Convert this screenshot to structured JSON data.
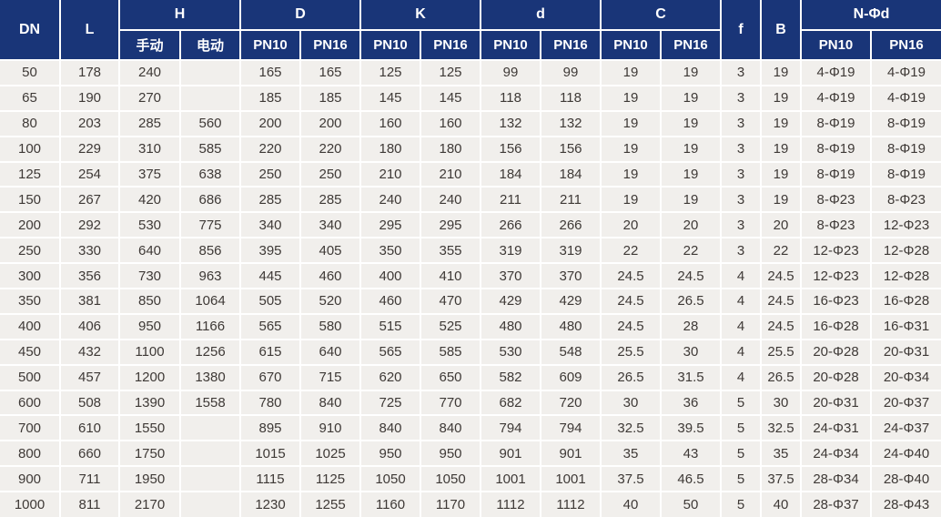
{
  "colors": {
    "header_bg": "#193578",
    "header_text": "#ffffff",
    "row_bg": "#f1efec",
    "grid": "#ffffff",
    "body_text": "#3e3936"
  },
  "table": {
    "header_groups": [
      {
        "label": "DN",
        "sub": []
      },
      {
        "label": "L",
        "sub": []
      },
      {
        "label": "H",
        "sub": [
          "手动",
          "电动"
        ]
      },
      {
        "label": "D",
        "sub": [
          "PN10",
          "PN16"
        ]
      },
      {
        "label": "K",
        "sub": [
          "PN10",
          "PN16"
        ]
      },
      {
        "label": "d",
        "sub": [
          "PN10",
          "PN16"
        ]
      },
      {
        "label": "C",
        "sub": [
          "PN10",
          "PN16"
        ]
      },
      {
        "label": "f",
        "sub": []
      },
      {
        "label": "B",
        "sub": []
      },
      {
        "label": "N-Φd",
        "sub": [
          "PN10",
          "PN16"
        ]
      }
    ],
    "rows": [
      [
        "50",
        "178",
        "240",
        "",
        "165",
        "165",
        "125",
        "125",
        "99",
        "99",
        "19",
        "19",
        "3",
        "19",
        "4-Φ19",
        "4-Φ19"
      ],
      [
        "65",
        "190",
        "270",
        "",
        "185",
        "185",
        "145",
        "145",
        "118",
        "118",
        "19",
        "19",
        "3",
        "19",
        "4-Φ19",
        "4-Φ19"
      ],
      [
        "80",
        "203",
        "285",
        "560",
        "200",
        "200",
        "160",
        "160",
        "132",
        "132",
        "19",
        "19",
        "3",
        "19",
        "8-Φ19",
        "8-Φ19"
      ],
      [
        "100",
        "229",
        "310",
        "585",
        "220",
        "220",
        "180",
        "180",
        "156",
        "156",
        "19",
        "19",
        "3",
        "19",
        "8-Φ19",
        "8-Φ19"
      ],
      [
        "125",
        "254",
        "375",
        "638",
        "250",
        "250",
        "210",
        "210",
        "184",
        "184",
        "19",
        "19",
        "3",
        "19",
        "8-Φ19",
        "8-Φ19"
      ],
      [
        "150",
        "267",
        "420",
        "686",
        "285",
        "285",
        "240",
        "240",
        "211",
        "211",
        "19",
        "19",
        "3",
        "19",
        "8-Φ23",
        "8-Φ23"
      ],
      [
        "200",
        "292",
        "530",
        "775",
        "340",
        "340",
        "295",
        "295",
        "266",
        "266",
        "20",
        "20",
        "3",
        "20",
        "8-Φ23",
        "12-Φ23"
      ],
      [
        "250",
        "330",
        "640",
        "856",
        "395",
        "405",
        "350",
        "355",
        "319",
        "319",
        "22",
        "22",
        "3",
        "22",
        "12-Φ23",
        "12-Φ28"
      ],
      [
        "300",
        "356",
        "730",
        "963",
        "445",
        "460",
        "400",
        "410",
        "370",
        "370",
        "24.5",
        "24.5",
        "4",
        "24.5",
        "12-Φ23",
        "12-Φ28"
      ],
      [
        "350",
        "381",
        "850",
        "1064",
        "505",
        "520",
        "460",
        "470",
        "429",
        "429",
        "24.5",
        "26.5",
        "4",
        "24.5",
        "16-Φ23",
        "16-Φ28"
      ],
      [
        "400",
        "406",
        "950",
        "1166",
        "565",
        "580",
        "515",
        "525",
        "480",
        "480",
        "24.5",
        "28",
        "4",
        "24.5",
        "16-Φ28",
        "16-Φ31"
      ],
      [
        "450",
        "432",
        "1100",
        "1256",
        "615",
        "640",
        "565",
        "585",
        "530",
        "548",
        "25.5",
        "30",
        "4",
        "25.5",
        "20-Φ28",
        "20-Φ31"
      ],
      [
        "500",
        "457",
        "1200",
        "1380",
        "670",
        "715",
        "620",
        "650",
        "582",
        "609",
        "26.5",
        "31.5",
        "4",
        "26.5",
        "20-Φ28",
        "20-Φ34"
      ],
      [
        "600",
        "508",
        "1390",
        "1558",
        "780",
        "840",
        "725",
        "770",
        "682",
        "720",
        "30",
        "36",
        "5",
        "30",
        "20-Φ31",
        "20-Φ37"
      ],
      [
        "700",
        "610",
        "1550",
        "",
        "895",
        "910",
        "840",
        "840",
        "794",
        "794",
        "32.5",
        "39.5",
        "5",
        "32.5",
        "24-Φ31",
        "24-Φ37"
      ],
      [
        "800",
        "660",
        "1750",
        "",
        "1015",
        "1025",
        "950",
        "950",
        "901",
        "901",
        "35",
        "43",
        "5",
        "35",
        "24-Φ34",
        "24-Φ40"
      ],
      [
        "900",
        "711",
        "1950",
        "",
        "1115",
        "1125",
        "1050",
        "1050",
        "1001",
        "1001",
        "37.5",
        "46.5",
        "5",
        "37.5",
        "28-Φ34",
        "28-Φ40"
      ],
      [
        "1000",
        "811",
        "2170",
        "",
        "1230",
        "1255",
        "1160",
        "1170",
        "1112",
        "1112",
        "40",
        "50",
        "5",
        "40",
        "28-Φ37",
        "28-Φ43"
      ]
    ]
  }
}
